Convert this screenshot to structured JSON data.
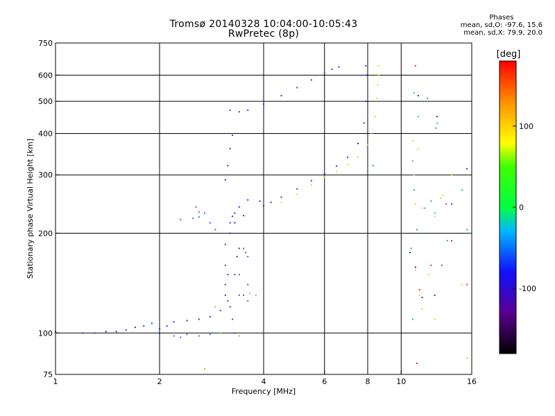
{
  "header": {
    "title": "Tromsø 20140328 10:04:00-10:05:43",
    "subtitle": "RwPretec (8p)"
  },
  "phases": {
    "heading": "Phases",
    "line_o": "mean, sd,O: -97.6, 15.6",
    "line_x": "mean, sd,X:  79.9, 20.0"
  },
  "colorbar": {
    "unit": "[deg]",
    "min": -180,
    "max": 180,
    "tick_labels": [
      "100",
      "0",
      "-100"
    ],
    "tick_values": [
      100,
      0,
      -100
    ]
  },
  "chart_data": {
    "type": "scatter",
    "xlabel": "Frequency [MHz]",
    "ylabel": "Stationary phase Virtual Height [km]",
    "xscale": "log",
    "yscale": "log",
    "xlim": [
      1,
      16
    ],
    "ylim": [
      75,
      750
    ],
    "x_ticks": [
      1,
      2,
      4,
      6,
      8,
      10,
      16
    ],
    "x_tick_labels": [
      "1",
      "2",
      "4",
      "6",
      "8",
      "10",
      "16"
    ],
    "x_gridlines": [
      2,
      4,
      6,
      8,
      10
    ],
    "y_ticks": [
      75,
      100,
      200,
      300,
      400,
      500,
      600,
      750
    ],
    "y_tick_labels": [
      "75",
      "100",
      "200",
      "300",
      "400",
      "500",
      "600",
      "750"
    ],
    "y_gridlines": [
      100,
      200,
      300,
      400,
      500,
      600
    ],
    "grid": true,
    "color_encoding": "phase in degrees",
    "series": [
      {
        "color": "#2a2af0",
        "points": [
          [
            1.0,
            101
          ],
          [
            1.2,
            100
          ],
          [
            1.3,
            100
          ],
          [
            1.4,
            101
          ],
          [
            1.5,
            101
          ],
          [
            1.6,
            102
          ],
          [
            1.7,
            104
          ],
          [
            1.8,
            105
          ],
          [
            1.9,
            107
          ],
          [
            2.0,
            103
          ],
          [
            2.1,
            105
          ],
          [
            2.2,
            108
          ],
          [
            2.4,
            109
          ],
          [
            2.6,
            110
          ],
          [
            2.8,
            112
          ],
          [
            3.0,
            117
          ],
          [
            3.1,
            130
          ],
          [
            3.15,
            150
          ],
          [
            3.2,
            200
          ],
          [
            3.3,
            215
          ],
          [
            3.5,
            226
          ],
          [
            4.0,
            242
          ],
          [
            4.5,
            257
          ],
          [
            5.0,
            272
          ],
          [
            5.5,
            288
          ],
          [
            6.0,
            302
          ],
          [
            6.5,
            319
          ],
          [
            7.0,
            339
          ],
          [
            7.5,
            373
          ],
          [
            7.8,
            430
          ],
          [
            7.9,
            500
          ],
          [
            7.95,
            600
          ],
          [
            7.9,
            640
          ]
        ]
      },
      {
        "color": "#1a3ae8",
        "points": [
          [
            3.2,
            215
          ],
          [
            3.25,
            225
          ],
          [
            3.3,
            230
          ],
          [
            3.4,
            240
          ],
          [
            3.6,
            252
          ],
          [
            3.9,
            250
          ],
          [
            4.2,
            248
          ],
          [
            3.1,
            290
          ],
          [
            3.15,
            320
          ],
          [
            3.2,
            360
          ],
          [
            3.25,
            395
          ]
        ]
      },
      {
        "color": "#3366ff",
        "points": [
          [
            2.3,
            220
          ],
          [
            2.5,
            222
          ],
          [
            2.6,
            224
          ],
          [
            2.7,
            230
          ],
          [
            2.8,
            215
          ],
          [
            2.9,
            205
          ],
          [
            2.55,
            240
          ],
          [
            2.6,
            232
          ]
        ]
      },
      {
        "color": "#1f3fd0",
        "points": [
          [
            3.2,
            470
          ],
          [
            3.4,
            465
          ],
          [
            3.6,
            470
          ],
          [
            4.0,
            490
          ],
          [
            4.5,
            520
          ],
          [
            5.0,
            550
          ],
          [
            5.5,
            580
          ],
          [
            6.0,
            608
          ],
          [
            6.3,
            625
          ],
          [
            6.6,
            635
          ]
        ]
      },
      {
        "color": "#6a1fa8",
        "points": [
          [
            3.1,
            160
          ],
          [
            3.1,
            140
          ],
          [
            3.15,
            125
          ],
          [
            3.2,
            120
          ],
          [
            3.25,
            110
          ],
          [
            3.3,
            100
          ],
          [
            3.3,
            150
          ],
          [
            3.35,
            170
          ],
          [
            3.4,
            180
          ],
          [
            3.1,
            185
          ]
        ]
      },
      {
        "color": "#2f62e8",
        "points": [
          [
            3.4,
            130
          ],
          [
            3.5,
            130
          ],
          [
            3.6,
            125
          ],
          [
            3.4,
            150
          ],
          [
            3.6,
            140
          ],
          [
            3.6,
            170
          ],
          [
            3.5,
            180
          ],
          [
            3.55,
            175
          ]
        ]
      },
      {
        "color": "#d8e012",
        "points": [
          [
            4.5,
            248
          ],
          [
            5.0,
            262
          ],
          [
            5.5,
            280
          ],
          [
            6.0,
            295
          ],
          [
            6.5,
            307
          ],
          [
            7.0,
            322
          ],
          [
            7.5,
            340
          ],
          [
            8.0,
            370
          ],
          [
            8.2,
            400
          ],
          [
            8.4,
            450
          ],
          [
            8.5,
            510
          ],
          [
            8.55,
            560
          ],
          [
            8.6,
            600
          ],
          [
            8.62,
            640
          ]
        ]
      },
      {
        "color": "#1f7fff",
        "points": [
          [
            2.0,
            99
          ],
          [
            2.2,
            98
          ],
          [
            2.4,
            99
          ],
          [
            2.6,
            98
          ],
          [
            2.8,
            99
          ],
          [
            2.3,
            97
          ]
        ]
      },
      {
        "color": "#8fd018",
        "points": [
          [
            2.9,
            120
          ],
          [
            3.0,
            100
          ],
          [
            3.65,
            132
          ],
          [
            3.8,
            130
          ],
          [
            2.7,
            78
          ],
          [
            3.4,
            98
          ]
        ]
      },
      {
        "color": "#e8d020",
        "points": [
          [
            10.8,
            380
          ],
          [
            11.2,
            360
          ],
          [
            10.9,
            300
          ],
          [
            11.0,
            245
          ],
          [
            11.5,
            238
          ],
          [
            12.5,
            225
          ],
          [
            13.0,
            255
          ],
          [
            11.0,
            155
          ],
          [
            11.3,
            130
          ],
          [
            12.0,
            150
          ],
          [
            11.5,
            118
          ],
          [
            12.5,
            110
          ],
          [
            13.2,
            260
          ],
          [
            14.0,
            300
          ],
          [
            15.0,
            140
          ],
          [
            15.5,
            84
          ]
        ]
      },
      {
        "color": "#20c030",
        "points": [
          [
            10.9,
            270
          ],
          [
            11.1,
            205
          ],
          [
            10.8,
            110
          ],
          [
            12.2,
            250
          ],
          [
            15.5,
            205
          ],
          [
            11.9,
            510
          ],
          [
            12.6,
            415
          ],
          [
            8.3,
            320
          ],
          [
            10.7,
            180
          ],
          [
            15.8,
            200
          ],
          [
            13.6,
            190
          ]
        ]
      },
      {
        "color": "#ff2020",
        "points": [
          [
            11.0,
            640
          ],
          [
            11.3,
            135
          ],
          [
            12.2,
            160
          ],
          [
            13.5,
            245
          ],
          [
            14.0,
            190
          ],
          [
            15.5,
            140
          ],
          [
            11.1,
            81
          ],
          [
            13.1,
            160
          ]
        ]
      },
      {
        "color": "#1a30c0",
        "points": [
          [
            10.6,
            175
          ],
          [
            11.0,
            158
          ],
          [
            12.7,
            450
          ],
          [
            14.0,
            245
          ],
          [
            11.5,
            128
          ],
          [
            12.5,
            130
          ],
          [
            15.5,
            313
          ],
          [
            11.2,
            520
          ]
        ]
      },
      {
        "color": "#18c0e0",
        "points": [
          [
            10.9,
            530
          ],
          [
            11.2,
            450
          ],
          [
            12.7,
            430
          ],
          [
            10.8,
            330
          ],
          [
            12.5,
            230
          ],
          [
            15.0,
            270
          ],
          [
            11.7,
            238
          ]
        ]
      }
    ]
  }
}
